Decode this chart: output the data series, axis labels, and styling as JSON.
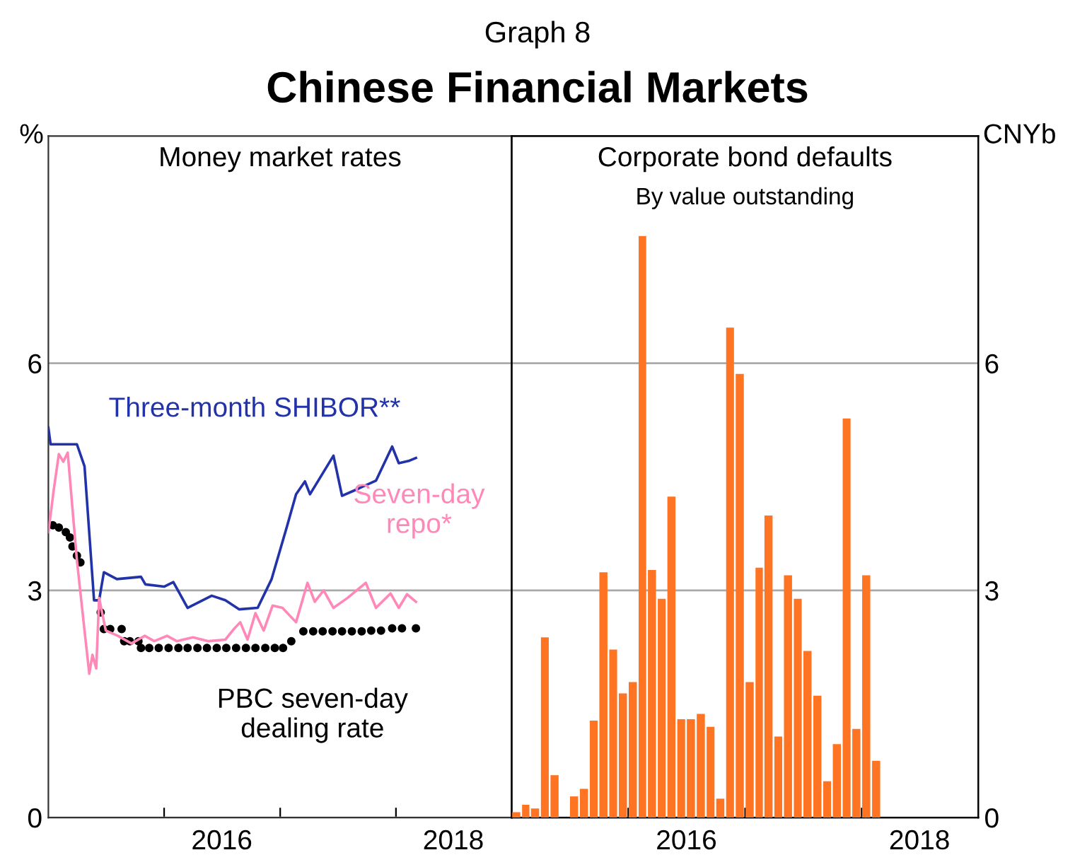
{
  "chart_data": [
    {
      "type": "line",
      "title": "Money market rates",
      "ylabel": "%",
      "annotations": [
        "Graph 8",
        "Chinese Financial Markets"
      ],
      "xlim": [
        "2015-01-01",
        "2019-01-01"
      ],
      "xticks": [
        {
          "value": "2016-01-01",
          "label": null
        },
        {
          "value": "2016-07-01",
          "label": "2016"
        },
        {
          "value": "2017-01-01",
          "label": null
        },
        {
          "value": "2018-01-01",
          "label": null
        },
        {
          "value": "2018-07-01",
          "label": "2018"
        }
      ],
      "ylim": [
        0,
        9
      ],
      "yticks": [
        0,
        3,
        6
      ],
      "grid": "y",
      "legend": false,
      "marker": "none",
      "line_style": "solid",
      "series": [
        {
          "name": "Three-month SHIBOR**",
          "color": "#2233aa",
          "x": [
            "2015-01-01",
            "2015-01-08",
            "2015-04-01",
            "2015-04-25",
            "2015-05-25",
            "2015-06-10",
            "2015-06-25",
            "2015-08-05",
            "2015-10-20",
            "2015-11-03",
            "2016-01-01",
            "2016-01-30",
            "2016-03-15",
            "2016-05-30",
            "2016-07-12",
            "2016-08-25",
            "2016-10-22",
            "2016-12-05",
            "2017-01-22",
            "2017-02-20",
            "2017-03-20",
            "2017-04-05",
            "2017-06-18",
            "2017-07-15",
            "2017-08-28",
            "2017-10-30",
            "2017-12-20",
            "2018-01-10",
            "2018-02-10",
            "2018-03-05"
          ],
          "values": [
            5.15,
            4.93,
            4.93,
            4.64,
            2.87,
            2.87,
            3.24,
            3.15,
            3.18,
            3.08,
            3.05,
            3.11,
            2.77,
            2.93,
            2.87,
            2.75,
            2.77,
            3.15,
            3.84,
            4.27,
            4.44,
            4.27,
            4.78,
            4.25,
            4.33,
            4.45,
            4.9,
            4.68,
            4.71,
            4.75
          ]
        },
        {
          "name": "Seven-day repo*",
          "color": "#ff88b8",
          "x": [
            "2015-01-01",
            "2015-01-18",
            "2015-02-03",
            "2015-02-17",
            "2015-03-03",
            "2015-03-18",
            "2015-04-01",
            "2015-04-25",
            "2015-05-10",
            "2015-05-20",
            "2015-06-01",
            "2015-06-10",
            "2015-07-01",
            "2015-08-08",
            "2015-09-20",
            "2015-11-01",
            "2015-12-01",
            "2016-01-10",
            "2016-02-10",
            "2016-04-01",
            "2016-05-20",
            "2016-07-12",
            "2016-08-10",
            "2016-08-28",
            "2016-09-20",
            "2016-10-15",
            "2016-11-10",
            "2016-12-08",
            "2017-01-08",
            "2017-02-20",
            "2017-03-28",
            "2017-04-20",
            "2017-05-18",
            "2017-06-18",
            "2017-08-01",
            "2017-09-28",
            "2017-10-30",
            "2017-12-15",
            "2018-01-10",
            "2018-02-05",
            "2018-03-05"
          ],
          "values": [
            3.77,
            4.33,
            4.8,
            4.7,
            4.82,
            4.08,
            3.4,
            2.47,
            1.9,
            2.15,
            1.97,
            2.9,
            2.47,
            2.4,
            2.3,
            2.4,
            2.33,
            2.4,
            2.33,
            2.38,
            2.33,
            2.35,
            2.5,
            2.58,
            2.35,
            2.7,
            2.47,
            2.8,
            2.77,
            2.58,
            3.1,
            2.85,
            3.0,
            2.77,
            2.9,
            3.1,
            2.77,
            2.96,
            2.77,
            2.95,
            2.85
          ]
        },
        {
          "name": "PBC seven-day dealing rate",
          "color": "#000000",
          "type": "scatter",
          "marker": "circle",
          "x": [
            "2015-01-15",
            "2015-02-03",
            "2015-02-25",
            "2015-03-10",
            "2015-03-18",
            "2015-04-01",
            "2015-04-12",
            "2015-06-15",
            "2015-06-25",
            "2015-07-15",
            "2015-08-20",
            "2015-08-28",
            "2015-09-15",
            "2015-10-12",
            "2015-10-20",
            "2015-11-15",
            "2015-12-15",
            "2016-01-15",
            "2016-02-15",
            "2016-03-15",
            "2016-04-15",
            "2016-05-15",
            "2016-06-15",
            "2016-07-15",
            "2016-08-15",
            "2016-09-15",
            "2016-10-15",
            "2016-11-15",
            "2016-12-15",
            "2017-01-10",
            "2017-02-05",
            "2017-03-15",
            "2017-04-15",
            "2017-05-15",
            "2017-06-15",
            "2017-07-15",
            "2017-08-15",
            "2017-09-15",
            "2017-10-15",
            "2017-11-15",
            "2017-12-20",
            "2018-01-20",
            "2018-03-05"
          ],
          "values": [
            3.86,
            3.83,
            3.77,
            3.7,
            3.58,
            3.46,
            3.37,
            2.71,
            2.49,
            2.49,
            2.49,
            2.33,
            2.33,
            2.33,
            2.24,
            2.24,
            2.24,
            2.24,
            2.24,
            2.24,
            2.24,
            2.24,
            2.24,
            2.24,
            2.24,
            2.24,
            2.24,
            2.24,
            2.24,
            2.24,
            2.33,
            2.46,
            2.46,
            2.46,
            2.46,
            2.46,
            2.46,
            2.46,
            2.47,
            2.47,
            2.5,
            2.5,
            2.5
          ]
        }
      ]
    },
    {
      "type": "bar",
      "title": "Corporate bond defaults",
      "subtitle": "By value outstanding",
      "y2label": "CNYb",
      "xlim": [
        "2015-01-01",
        "2019-01-01"
      ],
      "xticks": [
        {
          "value": "2016-01-01",
          "label": null
        },
        {
          "value": "2016-07-01",
          "label": "2016"
        },
        {
          "value": "2017-01-01",
          "label": null
        },
        {
          "value": "2018-01-01",
          "label": null
        },
        {
          "value": "2018-07-01",
          "label": "2018"
        }
      ],
      "y2lim": [
        0,
        9
      ],
      "y2ticks": [
        0,
        3,
        6
      ],
      "grid": "y",
      "legend": false,
      "x": [
        "2015-01",
        "2015-02",
        "2015-03",
        "2015-04",
        "2015-05",
        "2015-06",
        "2015-07",
        "2015-08",
        "2015-09",
        "2015-10",
        "2015-11",
        "2015-12",
        "2016-01",
        "2016-02",
        "2016-03",
        "2016-04",
        "2016-05",
        "2016-06",
        "2016-07",
        "2016-08",
        "2016-09",
        "2016-10",
        "2016-11",
        "2016-12",
        "2017-01",
        "2017-02",
        "2017-03",
        "2017-04",
        "2017-05",
        "2017-06",
        "2017-07",
        "2017-08",
        "2017-09",
        "2017-10",
        "2017-11",
        "2017-12",
        "2018-01",
        "2018-02"
      ],
      "series": [
        {
          "color": "#ff7422",
          "axis": "y2",
          "values": [
            0.07,
            0.17,
            0.12,
            2.38,
            0.56,
            0,
            0.28,
            0.38,
            1.28,
            3.24,
            2.22,
            1.64,
            1.79,
            7.68,
            3.27,
            2.89,
            4.24,
            1.3,
            1.3,
            1.37,
            1.2,
            0.25,
            6.47,
            5.86,
            1.79,
            3.3,
            3.99,
            1.07,
            3.2,
            2.89,
            2.2,
            1.61,
            0.48,
            0.97,
            5.27,
            1.17,
            3.2,
            0.75
          ]
        }
      ]
    }
  ]
}
